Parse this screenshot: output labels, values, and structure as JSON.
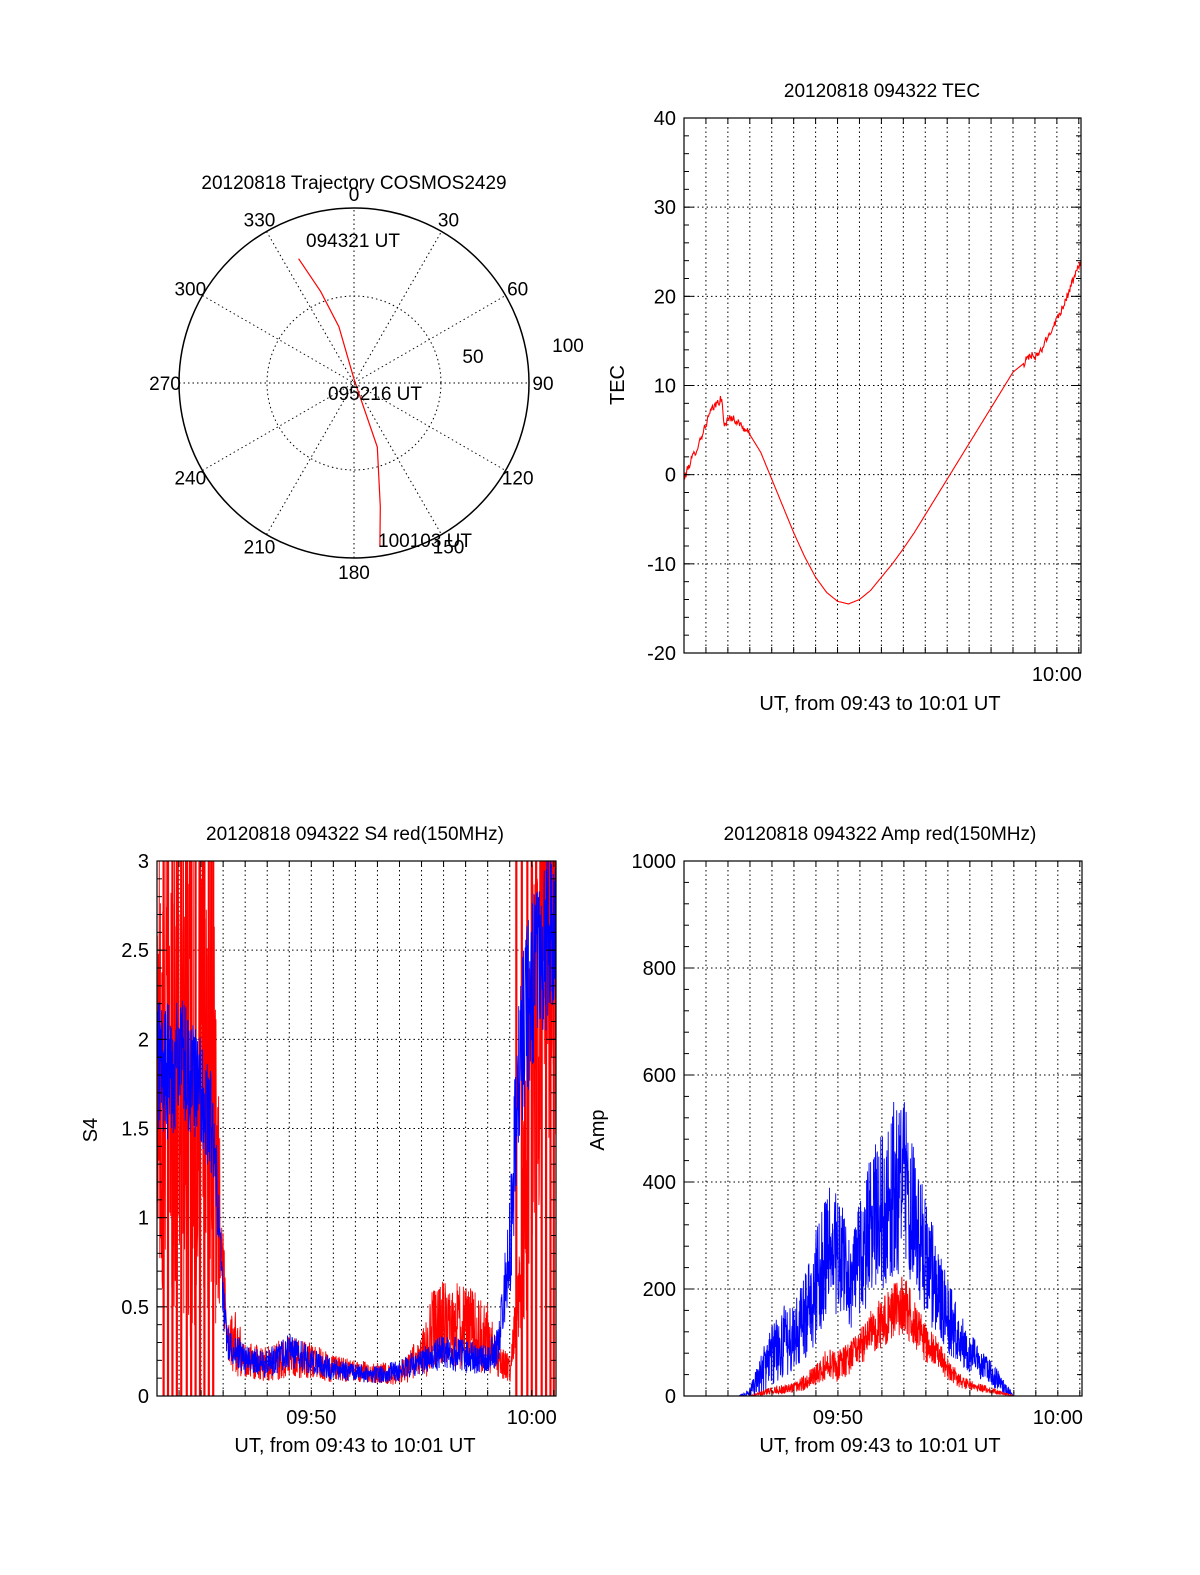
{
  "colors": {
    "red": "#ff0000",
    "blue": "#0000ff",
    "axis": "#000000"
  },
  "chart_data": [
    {
      "id": "trajectory",
      "type": "scatter",
      "coordinate_system": "polar",
      "title": "20120818 Trajectory COSMOS2429",
      "azimuth_labels": [
        "0",
        "30",
        "60",
        "90",
        "120",
        "150",
        "180",
        "210",
        "240",
        "270",
        "300",
        "330"
      ],
      "radial_labels": [
        "50",
        "100"
      ],
      "track": {
        "color": "#ff0000",
        "points": [
          {
            "az": 336,
            "el": 20
          },
          {
            "az": 340,
            "el": 40
          },
          {
            "az": 345,
            "el": 60
          },
          {
            "az": 0,
            "el": 88
          },
          {
            "az": 160,
            "el": 55
          },
          {
            "az": 168,
            "el": 25
          },
          {
            "az": 171,
            "el": 5
          }
        ]
      },
      "annotations": [
        "094321 UT",
        "095216 UT",
        "100103 UT"
      ]
    },
    {
      "id": "tec",
      "type": "line",
      "title": "20120818 094322 TEC",
      "ylabel": "TEC",
      "xlabel": "UT, from 09:43 to 10:01 UT",
      "xlim": [
        0,
        18.1
      ],
      "ylim": [
        -20,
        40
      ],
      "yticks": [
        "-20",
        "-10",
        "0",
        "10",
        "20",
        "30",
        "40"
      ],
      "xticks": [
        {
          "t": 17,
          "label": "10:00"
        }
      ],
      "series": [
        {
          "color": "#ff0000",
          "x": [
            0.0,
            0.3,
            0.6,
            0.9,
            1.2,
            1.5,
            1.7,
            1.85,
            2.1,
            2.5,
            3.0,
            3.5,
            4.0,
            4.5,
            5.0,
            5.5,
            6.0,
            6.5,
            7.0,
            7.5,
            8.0,
            8.5,
            9.0,
            9.5,
            10.0,
            10.5,
            11.0,
            11.5,
            12.0,
            12.5,
            13.0,
            13.5,
            14.0,
            14.5,
            15.0,
            15.5,
            15.8,
            16.0,
            16.3,
            16.6,
            16.9,
            17.3,
            17.7,
            18.1
          ],
          "y": [
            -0.5,
            1.5,
            3.0,
            5.0,
            7.0,
            8.0,
            8.5,
            5.5,
            6.5,
            5.8,
            4.5,
            2.5,
            -0.5,
            -3.5,
            -6.5,
            -9.2,
            -11.5,
            -13.2,
            -14.2,
            -14.5,
            -14.0,
            -13.0,
            -11.5,
            -10.0,
            -8.3,
            -6.5,
            -4.5,
            -2.5,
            -0.5,
            1.5,
            3.5,
            5.5,
            7.5,
            9.5,
            11.5,
            12.5,
            13.5,
            13.0,
            14.0,
            15.5,
            17.0,
            19.0,
            21.5,
            24.0
          ]
        }
      ]
    },
    {
      "id": "s4",
      "type": "line",
      "title": "20120818 094322 S4 red(150MHz)",
      "ylabel": "S4",
      "xlabel": "UT, from 09:43 to 10:01 UT",
      "xlim": [
        0,
        18.1
      ],
      "ylim": [
        0,
        3
      ],
      "yticks": [
        "0",
        "0.5",
        "1",
        "1.5",
        "2",
        "2.5",
        "3"
      ],
      "xticks": [
        {
          "t": 7,
          "label": "09:50"
        },
        {
          "t": 17,
          "label": "10:00"
        }
      ],
      "series": [
        {
          "color": "#ff0000",
          "x": [
            0.0,
            2.5,
            2.9,
            3.2,
            3.6,
            4.0,
            5.0,
            6.0,
            7.0,
            8.0,
            9.0,
            10.0,
            11.0,
            11.5,
            12.0,
            12.5,
            13.0,
            14.0,
            15.0,
            15.5,
            16.0,
            16.5,
            16.8,
            17.2,
            17.6,
            18.1
          ],
          "y": [
            2.0,
            1.6,
            0.9,
            0.35,
            0.28,
            0.2,
            0.18,
            0.22,
            0.2,
            0.15,
            0.14,
            0.13,
            0.12,
            0.18,
            0.22,
            0.35,
            0.4,
            0.38,
            0.32,
            0.2,
            0.15,
            0.6,
            1.5,
            2.2,
            2.6,
            2.8
          ],
          "amplitude": [
            1.5,
            1.5,
            0.3,
            0.15,
            0.2,
            0.1,
            0.1,
            0.12,
            0.1,
            0.08,
            0.06,
            0.06,
            0.06,
            0.1,
            0.12,
            0.25,
            0.25,
            0.25,
            0.2,
            0.1,
            0.08,
            0.3,
            1.0,
            1.4,
            1.4,
            1.4
          ],
          "spikes": [
            0.3,
            0.5,
            0.7,
            0.9,
            1.1,
            1.35,
            1.55,
            1.75,
            1.95,
            2.15,
            2.35,
            2.55,
            16.3,
            16.55,
            16.8,
            17.0,
            17.2,
            17.45,
            17.65,
            17.85,
            18.0
          ]
        },
        {
          "color": "#0000ff",
          "x": [
            0.0,
            0.5,
            1.0,
            1.5,
            2.0,
            2.5,
            2.8,
            3.0,
            3.2,
            3.6,
            4.0,
            5.0,
            6.0,
            7.0,
            8.0,
            9.0,
            10.0,
            11.0,
            12.0,
            13.0,
            14.0,
            15.0,
            15.5,
            16.0,
            16.3,
            16.6,
            17.0,
            17.5,
            18.1
          ],
          "y": [
            1.9,
            1.8,
            1.9,
            1.8,
            1.7,
            1.5,
            1.0,
            0.5,
            0.3,
            0.25,
            0.2,
            0.18,
            0.25,
            0.2,
            0.15,
            0.13,
            0.12,
            0.14,
            0.2,
            0.25,
            0.22,
            0.2,
            0.3,
            0.8,
            1.6,
            2.0,
            2.3,
            2.5,
            2.7
          ],
          "amplitude": [
            0.4,
            0.4,
            0.35,
            0.35,
            0.3,
            0.3,
            0.2,
            0.15,
            0.1,
            0.1,
            0.08,
            0.08,
            0.1,
            0.08,
            0.06,
            0.05,
            0.05,
            0.06,
            0.08,
            0.1,
            0.1,
            0.08,
            0.12,
            0.3,
            0.5,
            0.5,
            0.5,
            0.5,
            0.5
          ]
        }
      ]
    },
    {
      "id": "amp",
      "type": "line",
      "title": "20120818 094322 Amp red(150MHz)",
      "ylabel": "Amp",
      "xlabel": "UT, from 09:43 to 10:01 UT",
      "xlim": [
        0,
        18.1
      ],
      "ylim": [
        0,
        1000
      ],
      "yticks": [
        "0",
        "200",
        "400",
        "600",
        "800",
        "1000"
      ],
      "xticks": [
        {
          "t": 7,
          "label": "09:50"
        },
        {
          "t": 17,
          "label": "10:00"
        }
      ],
      "series": [
        {
          "color": "#0000ff",
          "x": [
            0.0,
            2.5,
            3.0,
            3.5,
            4.0,
            4.5,
            5.0,
            5.5,
            6.0,
            6.5,
            7.0,
            7.5,
            8.0,
            8.5,
            9.0,
            9.5,
            10.0,
            10.5,
            11.0,
            11.5,
            12.0,
            12.5,
            13.0,
            13.5,
            14.0,
            14.5,
            15.0,
            16.0,
            18.1
          ],
          "y": [
            0,
            0,
            5,
            40,
            80,
            100,
            110,
            150,
            200,
            280,
            260,
            220,
            250,
            320,
            350,
            380,
            400,
            330,
            260,
            200,
            150,
            110,
            80,
            60,
            40,
            20,
            0,
            0,
            0
          ],
          "amplitude": [
            0,
            0,
            10,
            40,
            60,
            70,
            60,
            80,
            110,
            120,
            120,
            100,
            110,
            140,
            150,
            170,
            160,
            130,
            110,
            90,
            70,
            50,
            40,
            30,
            25,
            15,
            0,
            0,
            0
          ]
        },
        {
          "color": "#ff0000",
          "x": [
            0.0,
            3.0,
            4.0,
            5.0,
            5.5,
            6.0,
            6.5,
            7.0,
            7.5,
            8.0,
            8.5,
            9.0,
            9.5,
            10.0,
            10.5,
            11.0,
            11.5,
            12.0,
            12.5,
            13.0,
            13.5,
            14.0,
            14.5,
            15.0,
            16.0,
            18.1
          ],
          "y": [
            0,
            0,
            10,
            15,
            25,
            40,
            60,
            55,
            70,
            90,
            120,
            140,
            160,
            170,
            140,
            100,
            80,
            50,
            30,
            20,
            15,
            10,
            5,
            0,
            0,
            0
          ],
          "amplitude": [
            0,
            0,
            8,
            10,
            15,
            20,
            30,
            30,
            30,
            35,
            40,
            50,
            55,
            55,
            50,
            40,
            30,
            20,
            15,
            10,
            8,
            6,
            4,
            0,
            0,
            0
          ]
        }
      ]
    }
  ]
}
